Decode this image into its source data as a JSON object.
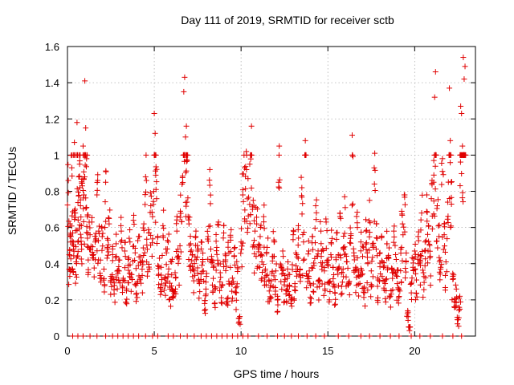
{
  "chart_data": {
    "type": "scatter",
    "title": "Day 111 of 2019, SRMTID for receiver sctb",
    "xlabel": "GPS time / hours",
    "ylabel": "SRMTID / TECUs",
    "xlim": [
      0,
      23.5
    ],
    "ylim": [
      0,
      1.6
    ],
    "xticks": [
      0,
      5,
      10,
      15,
      20
    ],
    "xtick_labels": [
      "0",
      "5",
      "10",
      "15",
      "20"
    ],
    "yticks": [
      0,
      0.2,
      0.4,
      0.6,
      0.8,
      1.0,
      1.2,
      1.4,
      1.6
    ],
    "ytick_labels": [
      "0",
      "0.2",
      "0.4",
      "0.6",
      "0.8",
      "1",
      "1.2",
      "1.4",
      "1.6"
    ],
    "grid": true,
    "marker": "plus",
    "color": "#e00000",
    "series": [
      {
        "name": "SRMTID",
        "points": [
          [
            0.05,
            0.86
          ],
          [
            0.1,
            0.45
          ],
          [
            0.15,
            0.62
          ],
          [
            0.2,
            0.55
          ],
          [
            0.25,
            0.93
          ],
          [
            0.3,
            0.57
          ],
          [
            0.35,
            0.48
          ],
          [
            0.4,
            1.07
          ],
          [
            0.45,
            0.68
          ],
          [
            0.5,
            0.41
          ],
          [
            0.55,
            1.18
          ],
          [
            0.6,
            0.52
          ],
          [
            0.65,
            0.88
          ],
          [
            0.7,
            0.95
          ],
          [
            0.75,
            0.72
          ],
          [
            0.8,
            0.61
          ],
          [
            0.85,
            0.83
          ],
          [
            0.9,
            1.05
          ],
          [
            0.95,
            0.78
          ],
          [
            1.0,
            1.41
          ],
          [
            1.05,
            1.15
          ],
          [
            1.1,
            0.98
          ],
          [
            1.15,
            0.66
          ],
          [
            1.2,
            0.49
          ],
          [
            1.3,
            0.56
          ],
          [
            1.4,
            0.63
          ],
          [
            1.5,
            0.45
          ],
          [
            1.6,
            0.52
          ],
          [
            1.7,
            0.78
          ],
          [
            1.8,
            0.58
          ],
          [
            1.9,
            0.42
          ],
          [
            2.0,
            0.55
          ],
          [
            2.1,
            0.37
          ],
          [
            2.2,
            0.85
          ],
          [
            2.3,
            0.49
          ],
          [
            2.4,
            0.62
          ],
          [
            2.5,
            0.33
          ],
          [
            2.6,
            0.45
          ],
          [
            2.7,
            0.28
          ],
          [
            2.8,
            0.51
          ],
          [
            2.9,
            0.36
          ],
          [
            3.0,
            0.42
          ],
          [
            3.1,
            0.58
          ],
          [
            3.2,
            0.31
          ],
          [
            3.3,
            0.47
          ],
          [
            3.4,
            0.25
          ],
          [
            3.5,
            0.39
          ],
          [
            3.6,
            0.52
          ],
          [
            3.7,
            0.34
          ],
          [
            3.8,
            0.64
          ],
          [
            3.9,
            0.46
          ],
          [
            4.0,
            0.29
          ],
          [
            4.1,
            0.55
          ],
          [
            4.2,
            0.41
          ],
          [
            4.3,
            0.37
          ],
          [
            4.4,
            0.62
          ],
          [
            4.5,
            0.88
          ],
          [
            4.6,
            0.48
          ],
          [
            4.7,
            0.57
          ],
          [
            4.8,
            0.72
          ],
          [
            4.9,
            0.66
          ],
          [
            5.0,
            1.23
          ],
          [
            5.05,
            1.12
          ],
          [
            5.1,
            0.81
          ],
          [
            5.2,
            0.55
          ],
          [
            5.3,
            0.43
          ],
          [
            5.4,
            0.38
          ],
          [
            5.5,
            0.61
          ],
          [
            5.6,
            0.32
          ],
          [
            5.7,
            0.46
          ],
          [
            5.8,
            0.52
          ],
          [
            5.9,
            0.27
          ],
          [
            6.0,
            0.41
          ],
          [
            6.1,
            0.22
          ],
          [
            6.2,
            0.35
          ],
          [
            6.3,
            0.58
          ],
          [
            6.4,
            0.44
          ],
          [
            6.5,
            0.69
          ],
          [
            6.6,
            0.84
          ],
          [
            6.7,
            1.35
          ],
          [
            6.75,
            1.43
          ],
          [
            6.8,
            1.1
          ],
          [
            6.85,
            1.16
          ],
          [
            6.9,
            0.97
          ],
          [
            7.0,
            0.62
          ],
          [
            7.1,
            0.51
          ],
          [
            7.2,
            0.45
          ],
          [
            7.3,
            0.36
          ],
          [
            7.4,
            0.58
          ],
          [
            7.5,
            0.47
          ],
          [
            7.6,
            0.29
          ],
          [
            7.7,
            0.52
          ],
          [
            7.8,
            0.41
          ],
          [
            7.9,
            0.18
          ],
          [
            8.0,
            0.33
          ],
          [
            8.1,
            0.55
          ],
          [
            8.2,
            0.92
          ],
          [
            8.3,
            0.44
          ],
          [
            8.4,
            0.38
          ],
          [
            8.5,
            0.26
          ],
          [
            8.6,
            0.49
          ],
          [
            8.7,
            0.63
          ],
          [
            8.8,
            0.35
          ],
          [
            8.9,
            0.28
          ],
          [
            9.0,
            0.57
          ],
          [
            9.1,
            0.41
          ],
          [
            9.2,
            0.19
          ],
          [
            9.3,
            0.46
          ],
          [
            9.4,
            0.53
          ],
          [
            9.5,
            0.32
          ],
          [
            9.6,
            0.44
          ],
          [
            9.7,
            0.24
          ],
          [
            9.8,
            0.38
          ],
          [
            9.9,
            0.1
          ],
          [
            10.0,
            0.52
          ],
          [
            10.1,
            0.78
          ],
          [
            10.2,
            0.93
          ],
          [
            10.3,
            1.02
          ],
          [
            10.4,
            0.87
          ],
          [
            10.5,
            0.95
          ],
          [
            10.6,
            1.16
          ],
          [
            10.7,
            0.75
          ],
          [
            10.8,
            0.58
          ],
          [
            10.9,
            0.62
          ],
          [
            11.0,
            0.48
          ],
          [
            11.1,
            0.55
          ],
          [
            11.2,
            0.41
          ],
          [
            11.3,
            0.66
          ],
          [
            11.4,
            0.37
          ],
          [
            11.5,
            0.49
          ],
          [
            11.6,
            0.31
          ],
          [
            11.7,
            0.28
          ],
          [
            11.8,
            0.44
          ],
          [
            11.9,
            0.52
          ],
          [
            12.0,
            0.36
          ],
          [
            12.1,
            0.22
          ],
          [
            12.2,
            1.05
          ],
          [
            12.3,
            0.39
          ],
          [
            12.4,
            0.47
          ],
          [
            12.5,
            0.3
          ],
          [
            12.6,
            0.25
          ],
          [
            12.7,
            0.41
          ],
          [
            12.8,
            0.34
          ],
          [
            12.9,
            0.2
          ],
          [
            13.0,
            0.56
          ],
          [
            13.1,
            0.29
          ],
          [
            13.2,
            0.45
          ],
          [
            13.3,
            0.61
          ],
          [
            13.4,
            0.37
          ],
          [
            13.5,
            0.82
          ],
          [
            13.6,
            0.52
          ],
          [
            13.7,
            1.08
          ],
          [
            13.8,
            0.33
          ],
          [
            13.9,
            0.47
          ],
          [
            14.0,
            0.28
          ],
          [
            14.1,
            0.55
          ],
          [
            14.2,
            0.39
          ],
          [
            14.3,
            0.72
          ],
          [
            14.4,
            0.44
          ],
          [
            14.5,
            0.31
          ],
          [
            14.6,
            0.58
          ],
          [
            14.7,
            0.48
          ],
          [
            14.8,
            0.36
          ],
          [
            14.9,
            0.63
          ],
          [
            15.0,
            0.42
          ],
          [
            15.1,
            0.3
          ],
          [
            15.2,
            0.51
          ],
          [
            15.3,
            0.38
          ],
          [
            15.4,
            0.24
          ],
          [
            15.5,
            0.57
          ],
          [
            15.6,
            0.45
          ],
          [
            15.7,
            0.66
          ],
          [
            15.8,
            0.35
          ],
          [
            15.9,
            0.49
          ],
          [
            16.0,
            0.71
          ],
          [
            16.1,
            0.41
          ],
          [
            16.2,
            0.29
          ],
          [
            16.3,
            0.54
          ],
          [
            16.4,
            1.11
          ],
          [
            16.5,
            0.46
          ],
          [
            16.6,
            0.38
          ],
          [
            16.7,
            0.6
          ],
          [
            16.8,
            0.33
          ],
          [
            16.9,
            0.52
          ],
          [
            17.0,
            0.44
          ],
          [
            17.1,
            0.27
          ],
          [
            17.2,
            0.58
          ],
          [
            17.3,
            0.4
          ],
          [
            17.4,
            0.75
          ],
          [
            17.5,
            0.36
          ],
          [
            17.6,
            0.49
          ],
          [
            17.7,
            1.01
          ],
          [
            17.8,
            0.62
          ],
          [
            17.9,
            0.31
          ],
          [
            18.0,
            0.46
          ],
          [
            18.1,
            0.55
          ],
          [
            18.2,
            0.38
          ],
          [
            18.3,
            0.29
          ],
          [
            18.4,
            0.51
          ],
          [
            18.5,
            0.43
          ],
          [
            18.6,
            0.22
          ],
          [
            18.7,
            0.37
          ],
          [
            18.8,
            0.58
          ],
          [
            18.9,
            0.45
          ],
          [
            19.0,
            0.33
          ],
          [
            19.1,
            0.26
          ],
          [
            19.2,
            0.48
          ],
          [
            19.3,
            0.62
          ],
          [
            19.4,
            0.78
          ],
          [
            19.5,
            0.41
          ],
          [
            19.6,
            0.14
          ],
          [
            19.7,
            0.03
          ],
          [
            19.8,
            0.29
          ],
          [
            19.9,
            0.38
          ],
          [
            20.0,
            0.47
          ],
          [
            20.1,
            0.31
          ],
          [
            20.2,
            0.55
          ],
          [
            20.3,
            0.42
          ],
          [
            20.4,
            0.68
          ],
          [
            20.5,
            0.35
          ],
          [
            20.6,
            0.52
          ],
          [
            20.7,
            0.78
          ],
          [
            20.8,
            0.61
          ],
          [
            20.9,
            0.44
          ],
          [
            21.0,
            0.86
          ],
          [
            21.1,
            0.97
          ],
          [
            21.15,
            1.32
          ],
          [
            21.2,
            1.46
          ],
          [
            21.3,
            0.72
          ],
          [
            21.4,
            0.55
          ],
          [
            21.5,
            0.38
          ],
          [
            21.6,
            0.91
          ],
          [
            21.7,
            0.62
          ],
          [
            21.8,
            0.41
          ],
          [
            21.9,
            0.74
          ],
          [
            22.0,
            1.37
          ],
          [
            22.05,
            1.08
          ],
          [
            22.1,
            0.85
          ],
          [
            22.2,
            0.33
          ],
          [
            22.3,
            0.19
          ],
          [
            22.4,
            0.26
          ],
          [
            22.5,
            0.09
          ],
          [
            22.6,
            0.22
          ],
          [
            22.65,
            1.27
          ],
          [
            22.7,
            1.23
          ],
          [
            22.75,
            1.05
          ],
          [
            22.8,
            1.54
          ],
          [
            22.85,
            1.42
          ],
          [
            22.9,
            1.49
          ]
        ]
      }
    ],
    "zero_points_x": [
      0.3,
      0.6,
      0.9,
      1.3,
      1.7,
      2.2,
      2.6,
      2.9,
      3.2,
      3.5,
      3.8,
      4.1,
      4.5,
      4.9,
      5.2,
      5.8,
      6.1,
      6.5,
      6.9,
      7.3,
      7.7,
      8.0,
      8.3,
      8.6,
      8.9,
      9.2,
      9.5,
      9.8,
      10.1,
      10.4,
      11.0,
      11.5,
      12.1,
      12.5,
      12.9,
      13.3,
      13.8,
      14.3,
      14.8,
      15.6,
      16.2,
      16.9,
      17.4,
      18.0,
      18.6,
      19.1,
      19.8,
      20.3,
      20.9,
      21.6,
      22.2,
      22.7
    ]
  }
}
